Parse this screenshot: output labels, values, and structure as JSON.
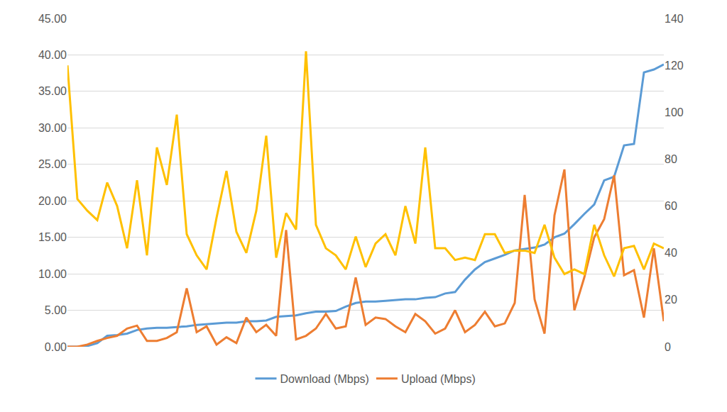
{
  "chart_data": {
    "type": "line",
    "categories": [
      null,
      null,
      null,
      null,
      null,
      null,
      null,
      null,
      null,
      null,
      null,
      null,
      null,
      null,
      null,
      null,
      null,
      null,
      null,
      null,
      null,
      null,
      null,
      null,
      null,
      null,
      null,
      null,
      null,
      null,
      null,
      null,
      null,
      null,
      null,
      null,
      null,
      null,
      null,
      null,
      null,
      null,
      null,
      null,
      null,
      null,
      null,
      null,
      null,
      null,
      null,
      null,
      null,
      null,
      null,
      null,
      null,
      null,
      null,
      null,
      null
    ],
    "series": [
      {
        "color": "#FFC000",
        "axis": "y2",
        "values": [
          120,
          63,
          58,
          54,
          70,
          60,
          42,
          71,
          39,
          85,
          69,
          99,
          48,
          39,
          33,
          55,
          75,
          49,
          40,
          58,
          90,
          38,
          57,
          50,
          126,
          52,
          42,
          39,
          33,
          47,
          34,
          44,
          48,
          39,
          60,
          44,
          85,
          42,
          42,
          37,
          38,
          37,
          48,
          48,
          40,
          41,
          41,
          40,
          52,
          38,
          31,
          33,
          31,
          52,
          39,
          30,
          42,
          43,
          33,
          44,
          42
        ]
      },
      {
        "name": "Download (Mbps)",
        "color": "#5B9BD5",
        "values": [
          0,
          0,
          0.1,
          0.5,
          1.5,
          1.6,
          1.8,
          2.3,
          2.5,
          2.6,
          2.6,
          2.7,
          2.8,
          3.0,
          3.1,
          3.2,
          3.3,
          3.3,
          3.5,
          3.5,
          3.6,
          4.1,
          4.2,
          4.3,
          4.6,
          4.8,
          4.8,
          4.9,
          5.5,
          6.0,
          6.2,
          6.2,
          6.3,
          6.4,
          6.5,
          6.5,
          6.7,
          6.8,
          7.3,
          7.5,
          9.2,
          10.6,
          11.6,
          12.1,
          12.6,
          13.2,
          13.4,
          13.6,
          14.0,
          15.0,
          15.5,
          16.8,
          18.2,
          19.5,
          22.8,
          23.3,
          27.6,
          27.8,
          37.6,
          38.0,
          38.7
        ]
      },
      {
        "name": "Upload (Mbps)",
        "color": "#ED7D31",
        "values": [
          0,
          0,
          0.3,
          0.8,
          1.2,
          1.5,
          2.5,
          2.9,
          0.8,
          0.8,
          1.2,
          2.0,
          8.0,
          2.0,
          2.8,
          0.3,
          1.3,
          0.5,
          4.0,
          2.0,
          3.0,
          1.5,
          16.0,
          1.0,
          1.5,
          2.5,
          4.5,
          2.5,
          2.8,
          9.5,
          3.0,
          4.0,
          3.8,
          2.8,
          2.0,
          4.5,
          3.5,
          1.8,
          2.5,
          5.0,
          2.0,
          3.0,
          4.8,
          2.8,
          3.2,
          6.0,
          20.8,
          6.5,
          1.8,
          18.0,
          24.3,
          5.0,
          9.5,
          15.0,
          17.5,
          23.5,
          9.8,
          10.5,
          4.0,
          13.5,
          3.5
        ]
      }
    ],
    "ylim": [
      0,
      45
    ],
    "yticks": [
      {
        "value": 0,
        "label": "0.00"
      },
      {
        "value": 5,
        "label": "5.00"
      },
      {
        "value": 10,
        "label": "10.00"
      },
      {
        "value": 15,
        "label": "15.00"
      },
      {
        "value": 20,
        "label": "20.00"
      },
      {
        "value": 25,
        "label": "25.00"
      },
      {
        "value": 30,
        "label": "30.00"
      },
      {
        "value": 35,
        "label": "35.00"
      },
      {
        "value": 40,
        "label": "40.00"
      },
      {
        "value": 45,
        "label": "45.00"
      }
    ],
    "y2lim": [
      0,
      140
    ],
    "y2ticks": [
      0,
      20,
      40,
      60,
      80,
      100,
      120,
      140
    ],
    "grid": true,
    "legend": "bottom",
    "tick_labels": "y"
  }
}
